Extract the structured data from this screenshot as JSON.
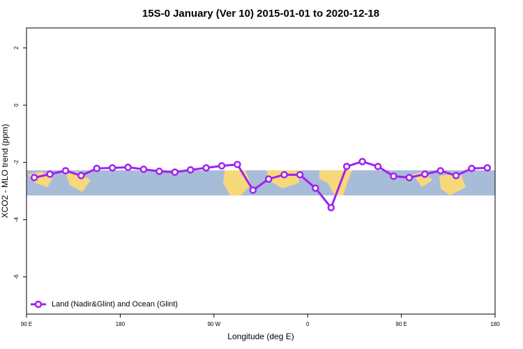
{
  "chart_data": {
    "type": "line",
    "title": "15S-0 January (Ver 10)   2015-01-01 to 2020-12-18",
    "x_label": "Longitude (deg E)",
    "y_label": "XCO2 - MLO trend (ppm)",
    "x": [
      97.5,
      112.5,
      127.5,
      142.5,
      157.5,
      172.5,
      187.5,
      202.5,
      217.5,
      232.5,
      247.5,
      262.5,
      277.5,
      292.5,
      307.5,
      322.5,
      337.5,
      352.5,
      367.5,
      382.5,
      397.5,
      412.5,
      427.5,
      442.5,
      457.5,
      472.5,
      487.5,
      502.5,
      517.5,
      532.5
    ],
    "series": [
      {
        "name": "Land (Nadir&Glint) and Ocean (Glint)",
        "color": "#a020f0",
        "values": [
          -2.53,
          -2.41,
          -2.29,
          -2.46,
          -2.21,
          -2.19,
          -2.17,
          -2.24,
          -2.31,
          -2.34,
          -2.26,
          -2.19,
          -2.12,
          -2.07,
          -2.97,
          -2.58,
          -2.43,
          -2.43,
          -2.9,
          -3.58,
          -2.14,
          -1.97,
          -2.14,
          -2.48,
          -2.53,
          -2.41,
          -2.29,
          -2.46,
          -2.21,
          -2.19
        ]
      }
    ],
    "xlim": [
      90,
      540
    ],
    "xticks": [
      {
        "value": 90,
        "label": "90 E"
      },
      {
        "value": 180,
        "label": "180"
      },
      {
        "value": 270,
        "label": "90 W"
      },
      {
        "value": 360,
        "label": "0"
      },
      {
        "value": 450,
        "label": "90 E"
      },
      {
        "value": 540,
        "label": "180"
      }
    ],
    "ylim": [
      -7.3,
      2.7
    ],
    "yticks": [
      -6,
      -4,
      -2,
      0,
      2
    ],
    "legend": "bottom-left"
  }
}
